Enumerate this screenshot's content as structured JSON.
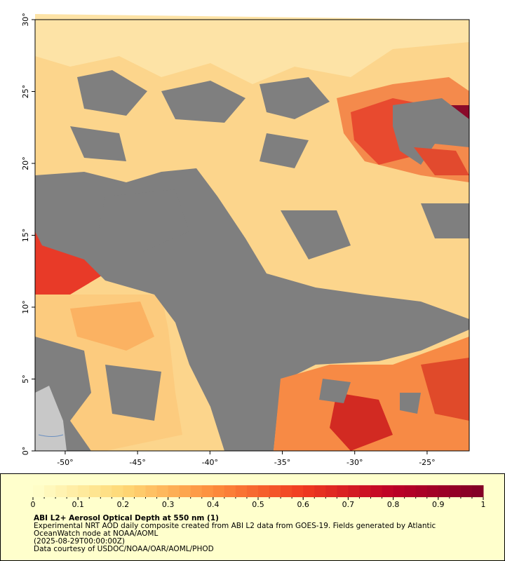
{
  "map": {
    "xlim": [
      -52.08,
      -22.09
    ],
    "ylim": [
      0,
      30
    ],
    "xticks": [
      {
        "value": -50,
        "label": "-50°"
      },
      {
        "value": -45,
        "label": "-45°"
      },
      {
        "value": -40,
        "label": "-40°"
      },
      {
        "value": -35,
        "label": "-35°"
      },
      {
        "value": -30,
        "label": "-30°"
      },
      {
        "value": -25,
        "label": "-25°"
      }
    ],
    "yticks": [
      {
        "value": 0,
        "label": "0°"
      },
      {
        "value": 5,
        "label": "5°"
      },
      {
        "value": 10,
        "label": "10°"
      },
      {
        "value": 15,
        "label": "15°"
      },
      {
        "value": 20,
        "label": "20°"
      },
      {
        "value": 25,
        "label": "25°"
      },
      {
        "value": 30,
        "label": "30°"
      }
    ]
  },
  "colorbar": {
    "lim": [
      0,
      1
    ],
    "ticks": [
      0,
      0.1,
      0.2,
      0.3,
      0.4,
      0.5,
      0.6,
      0.7,
      0.8,
      0.9,
      1
    ]
  },
  "caption": {
    "title": "ABI L2+ Aerosol Optical Depth at 550 nm (1)",
    "lines": [
      "Experimental NRT AOD daily composite created from ABI L2 data from GOES-19. Fields generated by Atlantic",
      "OceanWatch node at NOAA/AOML",
      "(2025-08-29T00:00:00Z)",
      "Data courtesy of USDOC/NOAA/OAR/AOML/PHOD"
    ]
  }
}
